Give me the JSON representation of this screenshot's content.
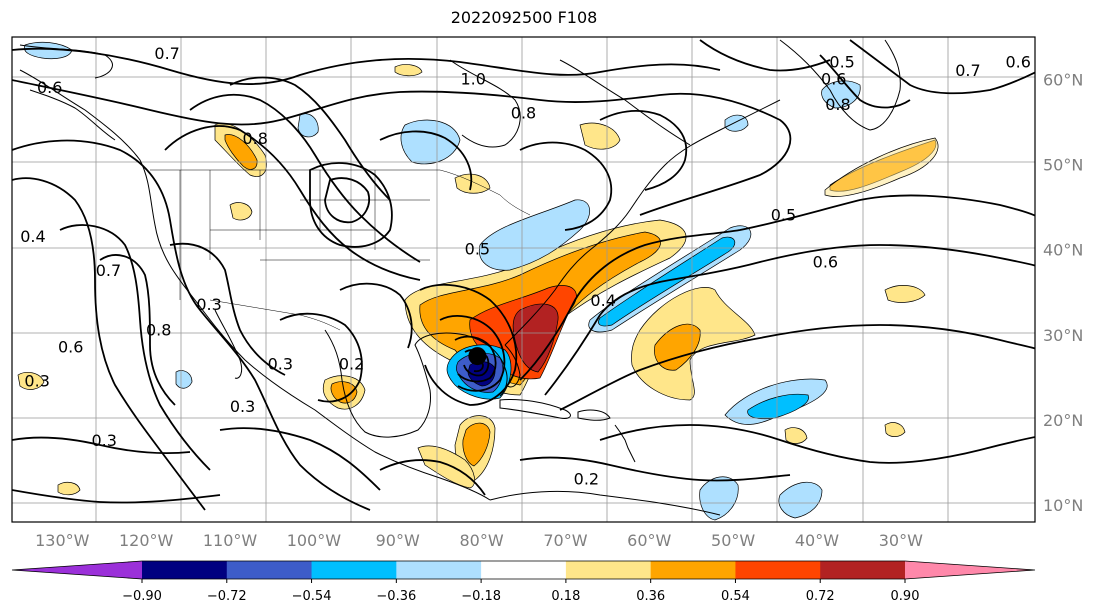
{
  "title": "2022092500 F108",
  "lon_ticks": [
    "130°W",
    "120°W",
    "110°W",
    "100°W",
    "90°W",
    "80°W",
    "70°W",
    "60°W",
    "50°W",
    "40°W",
    "30°W"
  ],
  "lat_ticks": [
    "60°N",
    "50°N",
    "40°N",
    "30°N",
    "20°N",
    "10°N"
  ],
  "map": {
    "extent": {
      "lon_min": -136,
      "lon_max": -14,
      "lat_min": 8,
      "lat_max": 65
    },
    "gridlines": true,
    "storm_marker": {
      "lon": -80.5,
      "lat": 27.5
    }
  },
  "contour_labels": [
    {
      "text": "0.7",
      "lon": -117.5,
      "lat": 63
    },
    {
      "text": "0.6",
      "lon": -131.5,
      "lat": 59
    },
    {
      "text": "1.0",
      "lon": -81,
      "lat": 60
    },
    {
      "text": "0.8",
      "lon": -75,
      "lat": 56
    },
    {
      "text": "0.8",
      "lon": -107,
      "lat": 53
    },
    {
      "text": "0.5",
      "lon": -37,
      "lat": 62
    },
    {
      "text": "0.6",
      "lon": -38,
      "lat": 60
    },
    {
      "text": "0.7",
      "lon": -22,
      "lat": 61
    },
    {
      "text": "0.6",
      "lon": -16,
      "lat": 62
    },
    {
      "text": "0.8",
      "lon": -37.5,
      "lat": 57
    },
    {
      "text": "0.4",
      "lon": -133.5,
      "lat": 41.5
    },
    {
      "text": "0.7",
      "lon": -124.5,
      "lat": 37.5
    },
    {
      "text": "0.3",
      "lon": -112.5,
      "lat": 33.5
    },
    {
      "text": "0.8",
      "lon": -118.5,
      "lat": 30.5
    },
    {
      "text": "0.6",
      "lon": -129,
      "lat": 28.5
    },
    {
      "text": "0.3",
      "lon": -133,
      "lat": 24.5
    },
    {
      "text": "0.3",
      "lon": -104,
      "lat": 26.5
    },
    {
      "text": "0.2",
      "lon": -95.5,
      "lat": 26.5
    },
    {
      "text": "0.3",
      "lon": -108.5,
      "lat": 21.5
    },
    {
      "text": "0.3",
      "lon": -125,
      "lat": 17.5
    },
    {
      "text": "0.5",
      "lon": -80.5,
      "lat": 40
    },
    {
      "text": "0.4",
      "lon": -65.5,
      "lat": 34
    },
    {
      "text": "0.5",
      "lon": -44,
      "lat": 44
    },
    {
      "text": "0.6",
      "lon": -39,
      "lat": 38.5
    },
    {
      "text": "0.2",
      "lon": -67.5,
      "lat": 13
    }
  ],
  "colorbar": {
    "ticks": [
      "−0.90",
      "−0.72",
      "−0.54",
      "−0.36",
      "−0.18",
      "0.18",
      "0.36",
      "0.54",
      "0.72",
      "0.90"
    ],
    "colors": [
      "#9b30d9",
      "#000080",
      "#3d5cc9",
      "#00bfff",
      "#aee0ff",
      "#ffffff",
      "#ffe68a",
      "#ffa500",
      "#ff4500",
      "#b22222",
      "#ff88aa"
    ]
  }
}
